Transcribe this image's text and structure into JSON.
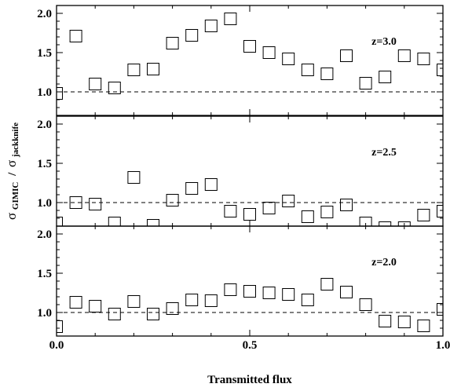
{
  "chart_data": {
    "type": "scatter",
    "layout": "three vertically stacked panels sharing the x axis",
    "xlabel": "Transmitted flux",
    "ylabel": {
      "sigma1": "σ",
      "sub1": "GIMIC",
      "slash": "/",
      "sigma2": "σ",
      "sub2": "jackknife"
    },
    "xlim": [
      0.0,
      1.0
    ],
    "ylim": [
      0.7,
      2.1
    ],
    "x_ticks": [
      "0.0",
      "0.5",
      "1.0"
    ],
    "y_ticks": [
      "1.0",
      "1.5",
      "2.0"
    ],
    "reference_line": 1.0,
    "marker": "open-square",
    "grid": false,
    "panels": [
      {
        "label": "z=3.0",
        "x": [
          0.0,
          0.05,
          0.1,
          0.15,
          0.2,
          0.25,
          0.3,
          0.35,
          0.4,
          0.45,
          0.5,
          0.55,
          0.6,
          0.65,
          0.7,
          0.75,
          0.8,
          0.85,
          0.9,
          0.95,
          1.0
        ],
        "y": [
          0.98,
          1.71,
          1.1,
          1.05,
          1.28,
          1.29,
          1.62,
          1.72,
          1.84,
          1.93,
          1.58,
          1.5,
          1.42,
          1.28,
          1.23,
          1.46,
          1.11,
          1.19,
          1.46,
          1.42,
          1.28
        ]
      },
      {
        "label": "z=2.5",
        "x": [
          0.0,
          0.05,
          0.1,
          0.15,
          0.2,
          0.25,
          0.3,
          0.35,
          0.4,
          0.45,
          0.5,
          0.55,
          0.6,
          0.65,
          0.7,
          0.75,
          0.8,
          0.85,
          0.9,
          0.95,
          1.0
        ],
        "y": [
          0.74,
          1.0,
          0.98,
          0.74,
          1.32,
          0.71,
          1.03,
          1.18,
          1.23,
          0.89,
          0.85,
          0.93,
          1.02,
          0.82,
          0.88,
          0.97,
          0.74,
          0.68,
          0.68,
          0.84,
          0.89
        ]
      },
      {
        "label": "z=2.0",
        "x": [
          0.0,
          0.05,
          0.1,
          0.15,
          0.2,
          0.25,
          0.3,
          0.35,
          0.4,
          0.45,
          0.5,
          0.55,
          0.6,
          0.65,
          0.7,
          0.75,
          0.8,
          0.85,
          0.9,
          0.95,
          1.0
        ],
        "y": [
          0.82,
          1.13,
          1.08,
          0.98,
          1.14,
          0.98,
          1.05,
          1.16,
          1.15,
          1.29,
          1.27,
          1.25,
          1.23,
          1.16,
          1.36,
          1.26,
          1.1,
          0.89,
          0.88,
          0.83,
          1.04
        ]
      }
    ]
  }
}
